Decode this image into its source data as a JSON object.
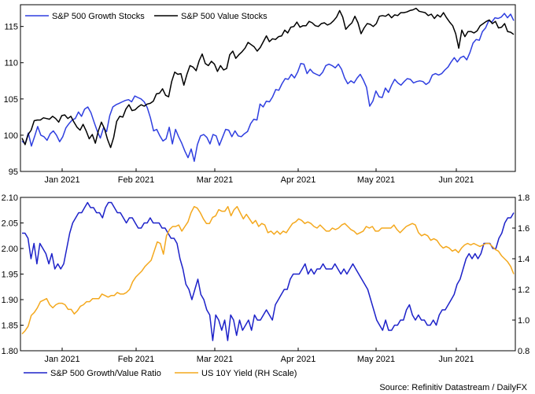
{
  "source_text": "Source: Refinitiv Datastream / DailyFX",
  "colors": {
    "growth": "#2f3fe0",
    "value": "#000000",
    "ratio": "#1d22c9",
    "yield": "#f4a81d"
  },
  "chart_data": [
    {
      "type": "line",
      "title": "",
      "xlabel": "",
      "ylabel": "",
      "ylim": [
        95,
        118
      ],
      "y_ticks": [
        95,
        100,
        105,
        110,
        115
      ],
      "x_tick_labels": [
        "Jan 2021",
        "Feb 2021",
        "Mar 2021",
        "Apr 2021",
        "May 2021",
        "Jun 2021"
      ],
      "legend_position": "top-left",
      "grid": false,
      "series": [
        {
          "name": "S&P 500 Growth Stocks",
          "color": "#2f3fe0",
          "values": [
            99.2,
            98.8,
            100.3,
            98.5,
            99.8,
            101.2,
            100.0,
            99.8,
            99.3,
            100.2,
            100.6,
            100.0,
            99.1,
            99.8,
            101.0,
            101.6,
            102.1,
            102.3,
            103.2,
            102.6,
            103.6,
            103.9,
            103.1,
            101.8,
            100.6,
            99.6,
            101.0,
            100.5,
            102.7,
            103.9,
            104.2,
            104.4,
            104.6,
            104.8,
            104.9,
            104.6,
            105.4,
            105.2,
            105.0,
            104.6,
            103.8,
            102.4,
            100.6,
            100.8,
            99.9,
            99.2,
            99.5,
            101.1,
            98.8,
            100.8,
            99.8,
            98.9,
            97.8,
            96.9,
            98.1,
            96.4,
            98.7,
            99.9,
            100.1,
            99.7,
            98.8,
            100.1,
            99.9,
            98.6,
            99.7,
            100.8,
            100.7,
            99.8,
            100.6,
            99.9,
            99.8,
            100.2,
            100.5,
            101.6,
            102.2,
            102.1,
            104.3,
            103.9,
            104.7,
            104.6,
            105.3,
            106.3,
            106.2,
            107.1,
            107.8,
            107.7,
            108.4,
            107.9,
            108.7,
            109.9,
            109.8,
            108.5,
            109.1,
            108.6,
            108.4,
            108.2,
            108.7,
            109.6,
            109.8,
            109.6,
            109.3,
            109.8,
            109.1,
            107.9,
            107.1,
            107.5,
            107.2,
            107.9,
            108.4,
            107.6,
            106.6,
            104.0,
            104.7,
            106.1,
            105.3,
            105.2,
            106.5,
            105.9,
            106.9,
            107.7,
            107.2,
            106.9,
            107.4,
            107.8,
            107.7,
            107.2,
            107.4,
            107.5,
            107.4,
            107.0,
            107.3,
            108.3,
            108.5,
            108.3,
            108.5,
            109.0,
            109.4,
            110.1,
            110.7,
            110.1,
            110.7,
            110.9,
            110.4,
            111.4,
            112.7,
            113.2,
            113.1,
            114.3,
            114.8,
            115.8,
            115.6,
            116.2,
            116.1,
            116.3,
            116.8,
            116.2,
            116.7,
            115.8
          ]
        },
        {
          "name": "S&P 500 Value Stocks",
          "color": "#000000",
          "values": [
            99.6,
            98.7,
            100.1,
            100.7,
            102.0,
            102.1,
            102.1,
            102.4,
            102.3,
            102.2,
            102.6,
            102.3,
            101.8,
            102.7,
            102.8,
            102.3,
            102.6,
            101.8,
            101.1,
            100.7,
            101.5,
            100.6,
            99.5,
            100.1,
            98.9,
            100.6,
            101.8,
            100.9,
            99.4,
            98.3,
            99.7,
            101.9,
            102.6,
            102.5,
            103.6,
            104.2,
            103.4,
            103.5,
            103.9,
            104.2,
            104.0,
            104.3,
            104.4,
            104.7,
            105.7,
            105.8,
            106.4,
            105.5,
            105.3,
            107.4,
            108.7,
            108.4,
            108.5,
            106.9,
            108.4,
            109.6,
            109.4,
            108.9,
            110.3,
            111.2,
            109.9,
            109.6,
            110.2,
            109.8,
            108.8,
            109.6,
            109.0,
            109.2,
            111.1,
            111.6,
            110.6,
            111.1,
            111.5,
            112.0,
            112.8,
            112.5,
            112.2,
            111.6,
            112.1,
            112.9,
            113.7,
            112.9,
            113.3,
            113.2,
            113.6,
            113.7,
            114.5,
            114.1,
            114.9,
            115.0,
            115.6,
            114.9,
            115.1,
            115.1,
            115.7,
            115.5,
            115.1,
            115.0,
            115.4,
            115.5,
            115.2,
            115.4,
            115.8,
            116.3,
            117.2,
            116.3,
            114.6,
            115.1,
            115.5,
            116.4,
            115.5,
            114.0,
            114.8,
            115.4,
            115.3,
            115.0,
            115.4,
            116.4,
            116.5,
            116.4,
            116.7,
            116.2,
            116.6,
            116.5,
            116.9,
            116.9,
            117.0,
            117.2,
            117.3,
            117.5,
            117.1,
            117.0,
            116.9,
            116.5,
            116.7,
            116.1,
            116.6,
            116.3,
            116.9,
            116.2,
            115.6,
            115.1,
            114.0,
            112.0,
            114.5,
            113.6,
            114.3,
            114.3,
            114.1,
            114.4,
            115.1,
            115.4,
            115.7,
            115.9,
            115.4,
            115.7,
            114.8,
            114.9,
            115.4,
            114.3,
            114.2,
            113.9
          ]
        }
      ]
    },
    {
      "type": "line",
      "title": "",
      "xlabel": "",
      "ylabel": "",
      "ylim": [
        1.8,
        2.1
      ],
      "y_ticks": [
        1.8,
        1.85,
        1.9,
        1.95,
        2.0,
        2.05,
        2.1
      ],
      "y2lim": [
        0.8,
        1.8
      ],
      "y2_ticks": [
        0.8,
        1.0,
        1.2,
        1.4,
        1.6,
        1.8
      ],
      "x_tick_labels": [
        "Jan 2021",
        "Feb 2021",
        "Mar 2021",
        "Apr 2021",
        "May 2021",
        "Jun 2021"
      ],
      "legend_position": "bottom-left",
      "grid": false,
      "series": [
        {
          "name": "S&P 500 Growth/Value Ratio",
          "color": "#1d22c9",
          "axis": "left",
          "values": [
            2.03,
            2.03,
            2.02,
            1.98,
            2.01,
            1.97,
            2.01,
            2.0,
            1.99,
            1.97,
            1.99,
            1.96,
            1.97,
            1.96,
            1.97,
            2.0,
            2.03,
            2.05,
            2.06,
            2.07,
            2.07,
            2.08,
            2.09,
            2.08,
            2.08,
            2.07,
            2.07,
            2.06,
            2.08,
            2.09,
            2.09,
            2.08,
            2.07,
            2.07,
            2.06,
            2.05,
            2.06,
            2.06,
            2.05,
            2.04,
            2.04,
            2.05,
            2.05,
            2.06,
            2.05,
            2.05,
            2.05,
            2.04,
            2.04,
            2.03,
            2.02,
            2.02,
            2.01,
            1.98,
            1.96,
            1.93,
            1.92,
            1.9,
            1.92,
            1.94,
            1.91,
            1.9,
            1.88,
            1.87,
            1.82,
            1.87,
            1.86,
            1.84,
            1.86,
            1.82,
            1.87,
            1.86,
            1.83,
            1.86,
            1.84,
            1.85,
            1.86,
            1.84,
            1.87,
            1.86,
            1.86,
            1.87,
            1.88,
            1.87,
            1.86,
            1.89,
            1.9,
            1.91,
            1.92,
            1.92,
            1.94,
            1.95,
            1.95,
            1.95,
            1.96,
            1.97,
            1.95,
            1.96,
            1.95,
            1.96,
            1.96,
            1.97,
            1.96,
            1.96,
            1.96,
            1.97,
            1.96,
            1.95,
            1.96,
            1.95,
            1.96,
            1.97,
            1.96,
            1.95,
            1.94,
            1.93,
            1.92,
            1.9,
            1.88,
            1.86,
            1.85,
            1.84,
            1.86,
            1.84,
            1.84,
            1.85,
            1.85,
            1.86,
            1.86,
            1.88,
            1.89,
            1.87,
            1.86,
            1.87,
            1.86,
            1.86,
            1.85,
            1.85,
            1.86,
            1.85,
            1.87,
            1.88,
            1.88,
            1.89,
            1.9,
            1.91,
            1.93,
            1.94,
            1.96,
            1.98,
            1.99,
            1.98,
            1.99,
            1.98,
            1.99,
            2.01,
            2.01,
            2.01,
            2.0,
            2.0,
            2.02,
            2.03,
            2.05,
            2.06,
            2.06,
            2.07
          ]
        },
        {
          "name": "US 10Y Yield (RH Scale)",
          "color": "#f4a81d",
          "axis": "right",
          "values": [
            0.91,
            0.93,
            0.96,
            1.03,
            1.05,
            1.08,
            1.12,
            1.13,
            1.14,
            1.1,
            1.08,
            1.1,
            1.11,
            1.11,
            1.1,
            1.07,
            1.07,
            1.04,
            1.06,
            1.09,
            1.1,
            1.12,
            1.12,
            1.14,
            1.14,
            1.14,
            1.17,
            1.16,
            1.15,
            1.16,
            1.16,
            1.18,
            1.17,
            1.17,
            1.18,
            1.2,
            1.25,
            1.28,
            1.3,
            1.32,
            1.35,
            1.37,
            1.39,
            1.45,
            1.51,
            1.5,
            1.43,
            1.55,
            1.59,
            1.61,
            1.61,
            1.62,
            1.58,
            1.61,
            1.64,
            1.7,
            1.74,
            1.73,
            1.7,
            1.66,
            1.63,
            1.63,
            1.67,
            1.68,
            1.72,
            1.71,
            1.71,
            1.74,
            1.68,
            1.72,
            1.74,
            1.7,
            1.66,
            1.69,
            1.66,
            1.63,
            1.65,
            1.61,
            1.63,
            1.62,
            1.57,
            1.58,
            1.56,
            1.58,
            1.56,
            1.58,
            1.57,
            1.6,
            1.63,
            1.64,
            1.66,
            1.65,
            1.63,
            1.64,
            1.63,
            1.61,
            1.6,
            1.62,
            1.6,
            1.58,
            1.58,
            1.6,
            1.59,
            1.6,
            1.62,
            1.63,
            1.61,
            1.59,
            1.58,
            1.56,
            1.57,
            1.58,
            1.61,
            1.6,
            1.61,
            1.58,
            1.58,
            1.6,
            1.6,
            1.6,
            1.6,
            1.62,
            1.59,
            1.57,
            1.59,
            1.61,
            1.62,
            1.63,
            1.62,
            1.57,
            1.55,
            1.56,
            1.55,
            1.52,
            1.53,
            1.52,
            1.49,
            1.47,
            1.48,
            1.47,
            1.45,
            1.46,
            1.44,
            1.47,
            1.49,
            1.5,
            1.49,
            1.5,
            1.49,
            1.48,
            1.49,
            1.5,
            1.5,
            1.48,
            1.46,
            1.45,
            1.42,
            1.4,
            1.38,
            1.35,
            1.3
          ]
        }
      ]
    }
  ]
}
